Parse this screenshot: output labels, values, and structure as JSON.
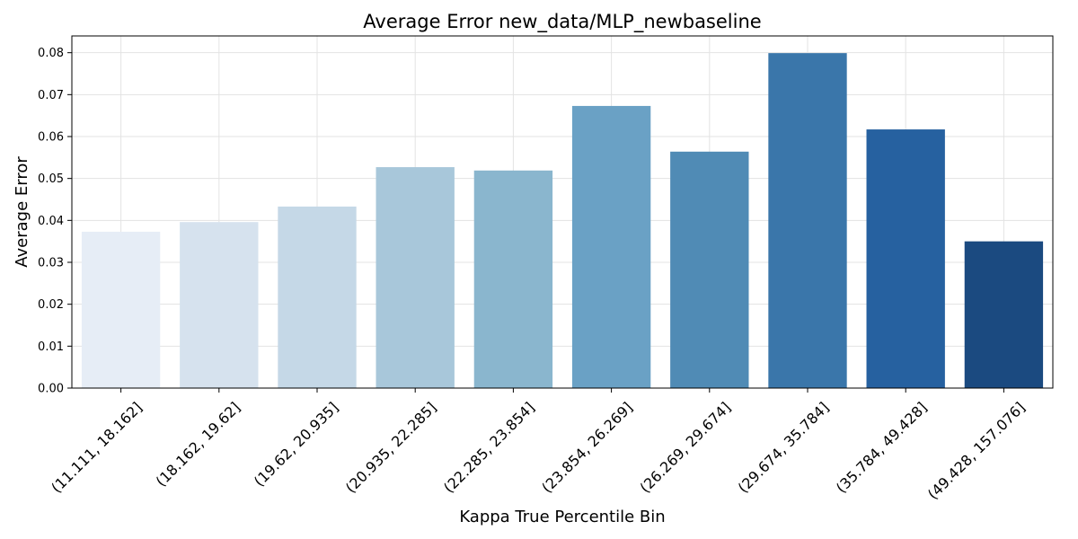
{
  "chart_data": {
    "type": "bar",
    "title": "Average Error new_data/MLP_newbaseline",
    "xlabel": "Kappa True Percentile Bin",
    "ylabel": "Average Error",
    "categories": [
      "(11.111, 18.162]",
      "(18.162, 19.62]",
      "(19.62, 20.935]",
      "(20.935, 22.285]",
      "(22.285, 23.854]",
      "(23.854, 26.269]",
      "(26.269, 29.674]",
      "(29.674, 35.784]",
      "(35.784, 49.428]",
      "(49.428, 157.076]"
    ],
    "values": [
      0.0373,
      0.0396,
      0.0433,
      0.0527,
      0.0519,
      0.0673,
      0.0564,
      0.0799,
      0.0617,
      0.035
    ],
    "colors": [
      "#e6edf6",
      "#d6e2ee",
      "#c5d8e7",
      "#a8c7da",
      "#8ab6ce",
      "#6aa1c5",
      "#508bb5",
      "#3a76aa",
      "#2661a0",
      "#1b4a80"
    ],
    "ylim": [
      0,
      0.084
    ],
    "yticks": [
      0.0,
      0.01,
      0.02,
      0.03,
      0.04,
      0.05,
      0.06,
      0.07,
      0.08
    ],
    "ytick_labels": [
      "0.00",
      "0.01",
      "0.02",
      "0.03",
      "0.04",
      "0.05",
      "0.06",
      "0.07",
      "0.08"
    ],
    "grid": true,
    "legend": "none"
  }
}
